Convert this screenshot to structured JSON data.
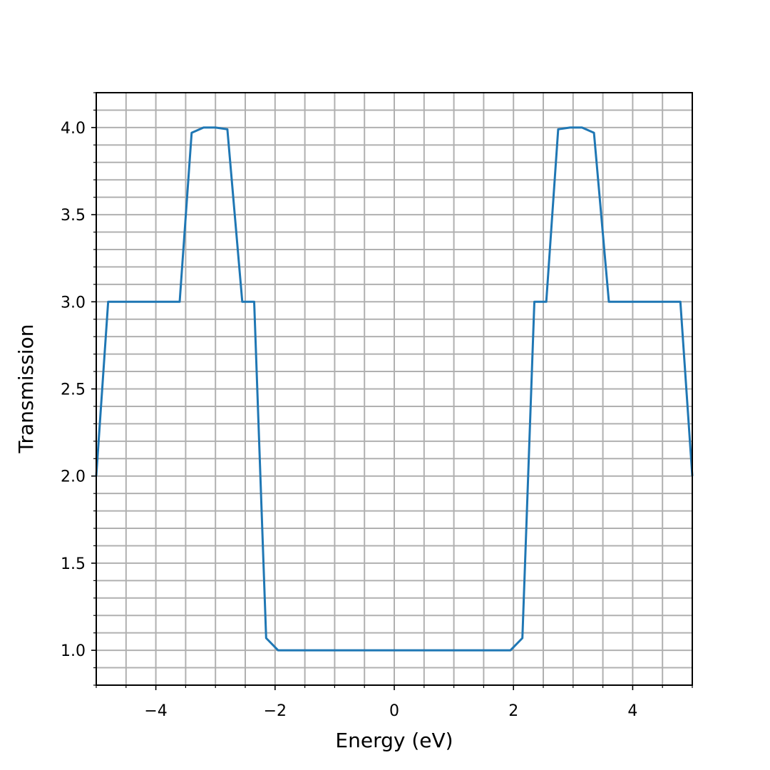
{
  "chart_data": {
    "type": "line",
    "xlabel": "Energy (eV)",
    "ylabel": "Transmission",
    "xlim": [
      -5,
      5
    ],
    "ylim": [
      0.8,
      4.2
    ],
    "grid": true,
    "minor_grid": true,
    "line_color": "#1f77b4",
    "x_ticks": [
      -4,
      -2,
      0,
      2,
      4
    ],
    "x_tick_labels": [
      "−4",
      "−2",
      "0",
      "2",
      "4"
    ],
    "y_ticks": [
      1.0,
      1.5,
      2.0,
      2.5,
      3.0,
      3.5,
      4.0
    ],
    "y_tick_labels": [
      "1.0",
      "1.5",
      "2.0",
      "2.5",
      "3.0",
      "3.5",
      "4.0"
    ],
    "series": [
      {
        "x": [
          -5.0,
          -4.8,
          -3.6,
          -3.4,
          -3.2,
          -3.0,
          -2.8,
          -2.55,
          -2.35,
          -2.15,
          -1.95,
          1.95,
          2.15,
          2.35,
          2.55,
          2.75,
          2.95,
          3.15,
          3.35,
          3.6,
          4.8,
          5.0
        ],
        "y": [
          2.0,
          3.0,
          3.0,
          3.97,
          4.0,
          4.0,
          3.99,
          3.0,
          3.0,
          1.07,
          1.0,
          1.0,
          1.07,
          3.0,
          3.0,
          3.99,
          4.0,
          4.0,
          3.97,
          3.0,
          3.0,
          2.0
        ]
      }
    ]
  }
}
